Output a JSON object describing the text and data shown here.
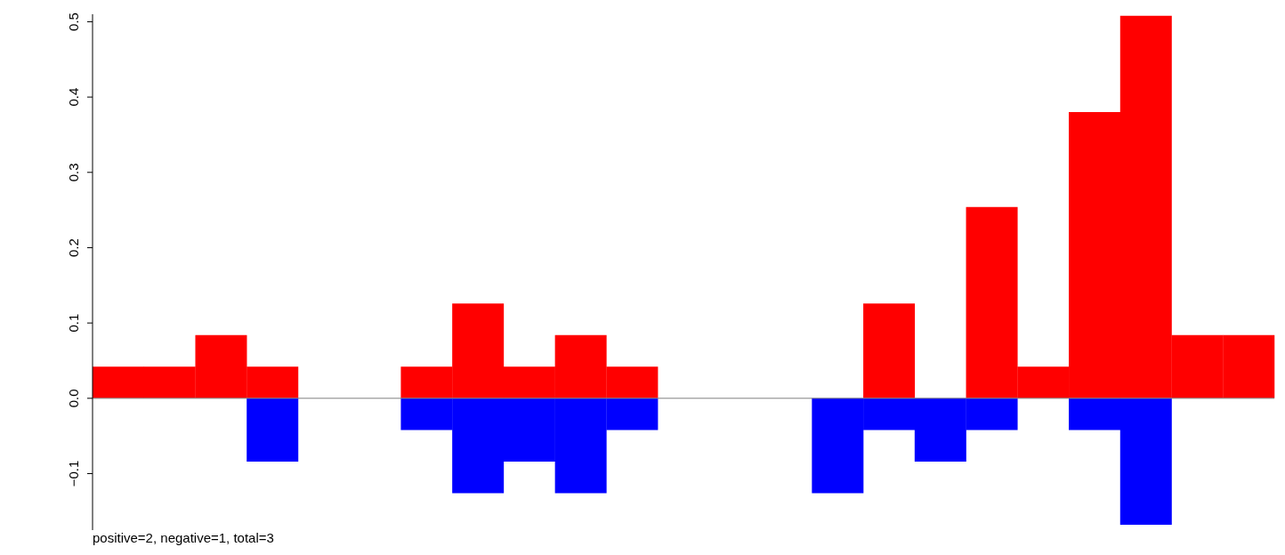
{
  "chart_data": {
    "type": "bar",
    "stacked": true,
    "categories": [
      null,
      null,
      null,
      null,
      null,
      null,
      null,
      null,
      null,
      null,
      null,
      null,
      null,
      null,
      null,
      null,
      null,
      null,
      null,
      null,
      null,
      null,
      null
    ],
    "series": [
      {
        "color": "#ff0000",
        "values": [
          0.042,
          0.042,
          0.084,
          0.042,
          null,
          null,
          0.042,
          0.126,
          0.042,
          0.084,
          0.042,
          null,
          null,
          null,
          null,
          0.126,
          null,
          0.254,
          0.042,
          0.38,
          0.508,
          0.084,
          0.084
        ]
      },
      {
        "color": "#0000ff",
        "values": [
          null,
          null,
          null,
          -0.084,
          null,
          null,
          -0.042,
          -0.126,
          -0.084,
          -0.126,
          -0.042,
          null,
          null,
          null,
          -0.126,
          -0.042,
          -0.084,
          -0.042,
          null,
          -0.042,
          -0.168,
          null,
          null
        ]
      }
    ],
    "ylim": [
      -0.175,
      0.51
    ],
    "yticks": [
      {
        "value": -0.1,
        "label": "−0.1"
      },
      {
        "value": 0,
        "label": "0.0"
      },
      {
        "value": 0.1,
        "label": "0.1"
      },
      {
        "value": 0.2,
        "label": "0.2"
      },
      {
        "value": 0.3,
        "label": "0.3"
      },
      {
        "value": 0.4,
        "label": "0.4"
      },
      {
        "value": 0.5,
        "label": "0.5"
      }
    ],
    "tick_labels": "y",
    "grid": false,
    "legend": false,
    "ref_lines": [
      {
        "axis": "y",
        "value": 0,
        "color": "#808080"
      }
    ],
    "annotations": [
      "positive=2, negative=1, total=3"
    ]
  }
}
